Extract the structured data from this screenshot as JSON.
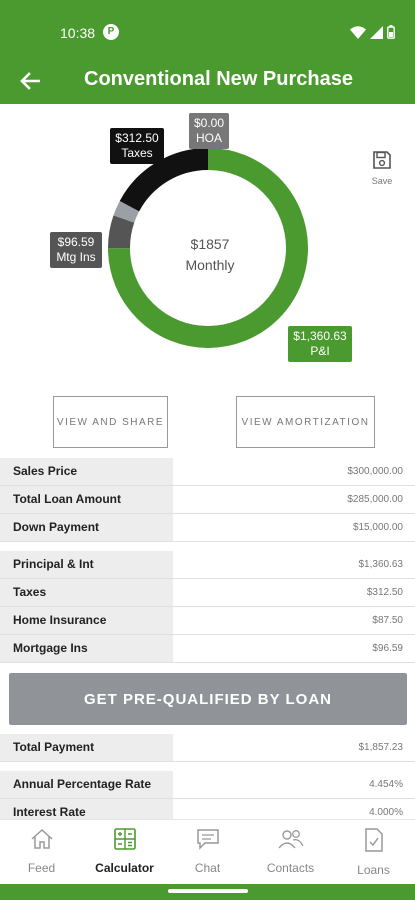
{
  "status_bar": {
    "time": "10:38",
    "notification_glyph": "P"
  },
  "app_bar": {
    "title": "Conventional New Purchase"
  },
  "chart": {
    "type": "pie",
    "center_amount": "$1857",
    "center_label": "Monthly",
    "segments": [
      {
        "label": "P&I",
        "amount": "$1,360.63",
        "value": 1360.63,
        "color": "#4b9a2f"
      },
      {
        "label": "Mtg Ins",
        "amount": "$96.59",
        "value": 96.59,
        "color": "#555555"
      },
      {
        "label": "HOA",
        "amount": "$0.00",
        "value": 0,
        "color": "#9aa0a6"
      },
      {
        "label": "Taxes",
        "amount": "$312.50",
        "value": 312.5,
        "color": "#111111"
      }
    ],
    "hoa_sliver_color": "#9aa0a6"
  },
  "save": {
    "label": "Save"
  },
  "actions": {
    "share_label": "VIEW AND SHARE",
    "amortization_label": "VIEW AMORTIZATION"
  },
  "loan_table": [
    {
      "label": "Sales Price",
      "value": "$300,000.00"
    },
    {
      "label": "Total Loan Amount",
      "value": "$285,000.00"
    },
    {
      "label": "Down Payment",
      "value": "$15,000.00"
    }
  ],
  "payment_table": [
    {
      "label": "Principal & Int",
      "value": "$1,360.63"
    },
    {
      "label": "Taxes",
      "value": "$312.50"
    },
    {
      "label": "Home Insurance",
      "value": "$87.50"
    },
    {
      "label": "Mortgage Ins",
      "value": "$96.59"
    }
  ],
  "prequalify": {
    "label": "GET PRE-QUALIFIED BY LOAN"
  },
  "total_table": [
    {
      "label": "Total Payment",
      "value": "$1,857.23"
    }
  ],
  "rate_table": [
    {
      "label": "Annual Percentage Rate",
      "value": "4.454%"
    },
    {
      "label": "Interest Rate",
      "value": "4.000%"
    }
  ],
  "bottom_nav": [
    {
      "label": "Feed",
      "icon": "home-icon",
      "active": false
    },
    {
      "label": "Calculator",
      "icon": "calculator-icon",
      "active": true
    },
    {
      "label": "Chat",
      "icon": "chat-icon",
      "active": false
    },
    {
      "label": "Contacts",
      "icon": "contacts-icon",
      "active": false
    },
    {
      "label": "Loans",
      "icon": "document-check-icon",
      "active": false
    }
  ],
  "colors": {
    "brand_green": "#4b9a2f",
    "button_gray": "#909498",
    "label_bg": "#ededed"
  }
}
